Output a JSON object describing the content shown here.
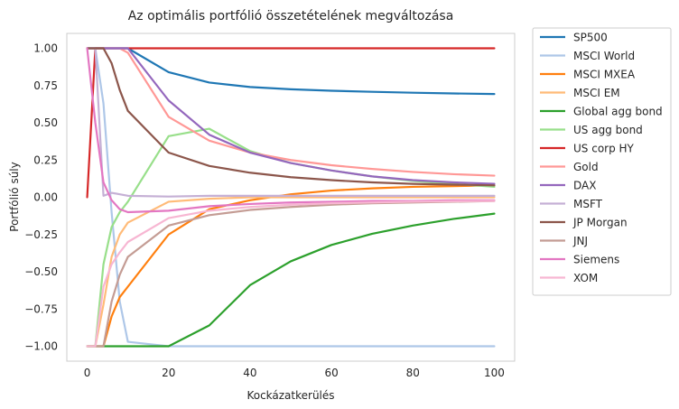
{
  "chart_data": {
    "type": "line",
    "title": "Az optimális portfólió összetételének megváltozása",
    "xlabel": "Kockázatkerülés",
    "ylabel": "Portfólió súly",
    "xlim": [
      -5,
      105
    ],
    "ylim": [
      -1.1,
      1.1
    ],
    "xticks": [
      0,
      20,
      40,
      60,
      80,
      100
    ],
    "xtick_labels": [
      "0",
      "20",
      "40",
      "60",
      "80",
      "100"
    ],
    "yticks": [
      1.0,
      0.75,
      0.5,
      0.25,
      0.0,
      -0.25,
      -0.5,
      -0.75,
      -1.0
    ],
    "ytick_labels": [
      "1.00",
      "0.75",
      "0.50",
      "0.25",
      "0.00",
      "−0.25",
      "−0.50",
      "−0.75",
      "−1.00"
    ],
    "grid": false,
    "legend_position": "outside-right",
    "series": [
      {
        "name": "SP500",
        "color": "#1f77b4",
        "x": [
          0,
          2,
          4,
          6,
          8,
          10,
          20,
          30,
          40,
          50,
          60,
          70,
          80,
          90,
          100
        ],
        "y": [
          1.0,
          1.0,
          1.0,
          1.0,
          1.0,
          1.0,
          0.84,
          0.77,
          0.74,
          0.725,
          0.715,
          0.708,
          0.702,
          0.697,
          0.693
        ]
      },
      {
        "name": "MSCI World",
        "color": "#aec7e8",
        "x": [
          0,
          2,
          4,
          6,
          8,
          10,
          20,
          30,
          40,
          50,
          60,
          70,
          80,
          90,
          100
        ],
        "y": [
          1.0,
          1.0,
          0.63,
          -0.1,
          -0.7,
          -0.97,
          -1.0,
          -1.0,
          -1.0,
          -1.0,
          -1.0,
          -1.0,
          -1.0,
          -1.0,
          -1.0
        ]
      },
      {
        "name": "MSCI MXEA",
        "color": "#ff7f0e",
        "x": [
          0,
          2,
          4,
          6,
          8,
          10,
          20,
          30,
          40,
          50,
          60,
          70,
          80,
          90,
          100
        ],
        "y": [
          -1.0,
          -1.0,
          -1.0,
          -0.8,
          -0.67,
          -0.6,
          -0.25,
          -0.08,
          -0.02,
          0.02,
          0.045,
          0.06,
          0.07,
          0.075,
          0.08
        ]
      },
      {
        "name": "MSCI EM",
        "color": "#ffbb78",
        "x": [
          0,
          2,
          4,
          6,
          8,
          10,
          20,
          30,
          40,
          50,
          60,
          70,
          80,
          90,
          100
        ],
        "y": [
          -1.0,
          -1.0,
          -0.72,
          -0.4,
          -0.25,
          -0.17,
          -0.03,
          -0.01,
          0.0,
          0.0,
          0.0,
          0.0,
          0.0,
          0.0,
          0.0
        ]
      },
      {
        "name": "Global agg bond",
        "color": "#2ca02c",
        "x": [
          0,
          2,
          4,
          6,
          8,
          10,
          20,
          30,
          40,
          50,
          60,
          70,
          80,
          90,
          100
        ],
        "y": [
          -1.0,
          -1.0,
          -1.0,
          -1.0,
          -1.0,
          -1.0,
          -1.0,
          -0.86,
          -0.59,
          -0.43,
          -0.32,
          -0.245,
          -0.19,
          -0.145,
          -0.11
        ]
      },
      {
        "name": "US agg bond",
        "color": "#98df8a",
        "x": [
          0,
          2,
          4,
          6,
          8,
          10,
          20,
          30,
          40,
          50,
          60,
          70,
          80,
          90,
          100
        ],
        "y": [
          -1.0,
          -1.0,
          -0.45,
          -0.2,
          -0.1,
          -0.03,
          0.41,
          0.46,
          0.31,
          0.23,
          0.18,
          0.14,
          0.11,
          0.09,
          0.07
        ]
      },
      {
        "name": "US corp HY",
        "color": "#d62728",
        "x": [
          0,
          2,
          4,
          6,
          8,
          10,
          20,
          30,
          40,
          50,
          60,
          70,
          80,
          90,
          100
        ],
        "y": [
          0.0,
          1.0,
          1.0,
          1.0,
          1.0,
          1.0,
          1.0,
          1.0,
          1.0,
          1.0,
          1.0,
          1.0,
          1.0,
          1.0,
          1.0
        ]
      },
      {
        "name": "Gold",
        "color": "#ff9896",
        "x": [
          0,
          2,
          4,
          6,
          8,
          10,
          20,
          30,
          40,
          50,
          60,
          70,
          80,
          90,
          100
        ],
        "y": [
          1.0,
          1.0,
          1.0,
          1.0,
          1.0,
          0.97,
          0.54,
          0.38,
          0.3,
          0.25,
          0.215,
          0.19,
          0.17,
          0.155,
          0.145
        ]
      },
      {
        "name": "DAX",
        "color": "#9467bd",
        "x": [
          0,
          2,
          4,
          6,
          8,
          10,
          20,
          30,
          40,
          50,
          60,
          70,
          80,
          90,
          100
        ],
        "y": [
          1.0,
          1.0,
          1.0,
          1.0,
          1.0,
          1.0,
          0.65,
          0.42,
          0.3,
          0.23,
          0.18,
          0.14,
          0.115,
          0.1,
          0.09
        ]
      },
      {
        "name": "MSFT",
        "color": "#c5b0d5",
        "x": [
          0,
          2,
          4,
          6,
          8,
          10,
          20,
          30,
          40,
          50,
          60,
          70,
          80,
          90,
          100
        ],
        "y": [
          1.0,
          1.0,
          0.01,
          0.03,
          0.02,
          0.01,
          0.005,
          0.01,
          0.01,
          0.01,
          0.01,
          0.01,
          0.01,
          0.01,
          0.01
        ]
      },
      {
        "name": "JP Morgan",
        "color": "#8c564b",
        "x": [
          0,
          2,
          4,
          6,
          8,
          10,
          20,
          30,
          40,
          50,
          60,
          70,
          80,
          90,
          100
        ],
        "y": [
          1.0,
          1.0,
          1.0,
          0.9,
          0.72,
          0.58,
          0.3,
          0.21,
          0.165,
          0.135,
          0.115,
          0.1,
          0.09,
          0.085,
          0.08
        ]
      },
      {
        "name": "JNJ",
        "color": "#c49c94",
        "x": [
          0,
          2,
          4,
          6,
          8,
          10,
          20,
          30,
          40,
          50,
          60,
          70,
          80,
          90,
          100
        ],
        "y": [
          -1.0,
          -1.0,
          -1.0,
          -0.7,
          -0.52,
          -0.4,
          -0.19,
          -0.12,
          -0.085,
          -0.065,
          -0.05,
          -0.04,
          -0.035,
          -0.03,
          -0.025
        ]
      },
      {
        "name": "Siemens",
        "color": "#e377c2",
        "x": [
          0,
          2,
          4,
          6,
          8,
          10,
          20,
          30,
          40,
          50,
          60,
          70,
          80,
          90,
          100
        ],
        "y": [
          1.0,
          0.5,
          0.1,
          -0.02,
          -0.08,
          -0.1,
          -0.09,
          -0.06,
          -0.045,
          -0.035,
          -0.03,
          -0.025,
          -0.025,
          -0.02,
          -0.02
        ]
      },
      {
        "name": "XOM",
        "color": "#f7b6d2",
        "x": [
          0,
          2,
          4,
          6,
          8,
          10,
          20,
          30,
          40,
          50,
          60,
          70,
          80,
          90,
          100
        ],
        "y": [
          -1.0,
          -1.0,
          -0.6,
          -0.45,
          -0.37,
          -0.3,
          -0.14,
          -0.09,
          -0.065,
          -0.05,
          -0.04,
          -0.035,
          -0.03,
          -0.027,
          -0.025
        ]
      }
    ]
  }
}
